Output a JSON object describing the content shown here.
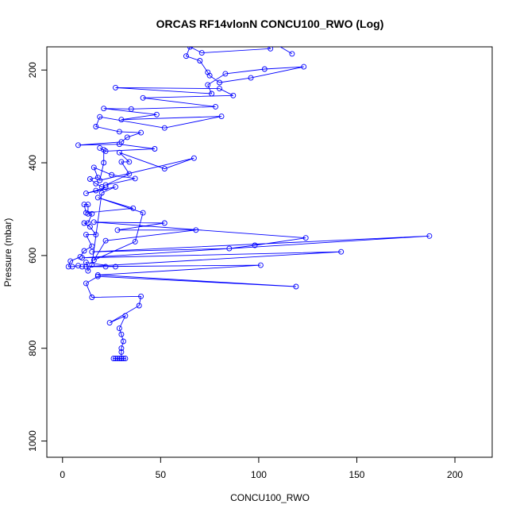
{
  "chart_data": {
    "type": "line",
    "title": "ORCAS RF14vlonN CONCU100_RWO (Log)",
    "xlabel": "CONCU100_RWO",
    "ylabel": "Pressure (mbar)",
    "xlim": [
      -8,
      219
    ],
    "ylim": [
      1035,
      150
    ],
    "y_inverted": true,
    "x_ticks": [
      0,
      50,
      100,
      150,
      200
    ],
    "y_ticks": [
      200,
      400,
      600,
      800,
      1000
    ],
    "grid": false,
    "legend": "none",
    "series_color": "#0000ff",
    "points": [
      [
        30,
        822
      ],
      [
        29,
        822
      ],
      [
        28,
        822
      ],
      [
        27,
        822
      ],
      [
        26,
        822
      ],
      [
        31,
        822
      ],
      [
        32,
        822
      ],
      [
        30,
        822
      ],
      [
        30,
        808
      ],
      [
        30,
        800
      ],
      [
        31,
        785
      ],
      [
        30,
        770
      ],
      [
        29,
        757
      ],
      [
        32,
        730
      ],
      [
        24,
        745
      ],
      [
        39,
        708
      ],
      [
        40,
        688
      ],
      [
        15,
        690
      ],
      [
        12,
        660
      ],
      [
        18,
        645
      ],
      [
        119,
        667
      ],
      [
        18,
        642
      ],
      [
        101,
        621
      ],
      [
        12,
        624
      ],
      [
        142,
        592
      ],
      [
        10,
        605
      ],
      [
        187,
        558
      ],
      [
        15,
        592
      ],
      [
        85,
        585
      ],
      [
        98,
        578
      ],
      [
        124,
        562
      ],
      [
        16,
        528
      ],
      [
        52,
        530
      ],
      [
        28,
        545
      ],
      [
        68,
        545
      ],
      [
        22,
        568
      ],
      [
        16,
        610
      ],
      [
        37,
        570
      ],
      [
        41,
        508
      ],
      [
        18,
        475
      ],
      [
        36,
        498
      ],
      [
        12,
        508
      ],
      [
        11,
        490
      ],
      [
        13,
        490
      ],
      [
        13,
        510
      ],
      [
        15,
        510
      ],
      [
        13,
        530
      ],
      [
        11,
        530
      ],
      [
        14,
        538
      ],
      [
        17,
        555
      ],
      [
        12,
        555
      ],
      [
        15,
        580
      ],
      [
        11,
        590
      ],
      [
        9,
        603
      ],
      [
        4,
        612
      ],
      [
        3,
        624
      ],
      [
        5,
        624
      ],
      [
        8,
        622
      ],
      [
        10,
        624
      ],
      [
        22,
        624
      ],
      [
        27,
        624
      ],
      [
        12,
        615
      ],
      [
        13,
        633
      ],
      [
        15,
        620
      ],
      [
        20,
        465
      ],
      [
        27,
        452
      ],
      [
        12,
        466
      ],
      [
        17,
        460
      ],
      [
        22,
        453
      ],
      [
        20,
        452
      ],
      [
        17,
        445
      ],
      [
        14,
        435
      ],
      [
        18,
        432
      ],
      [
        16,
        410
      ],
      [
        25,
        426
      ],
      [
        37,
        434
      ],
      [
        22,
        448
      ],
      [
        34,
        424
      ],
      [
        30,
        398
      ],
      [
        34,
        398
      ],
      [
        29,
        378
      ],
      [
        52,
        413
      ],
      [
        67,
        390
      ],
      [
        19,
        438
      ],
      [
        21,
        400
      ],
      [
        21,
        372
      ],
      [
        19,
        368
      ],
      [
        22,
        375
      ],
      [
        47,
        370
      ],
      [
        29,
        360
      ],
      [
        8,
        362
      ],
      [
        30,
        355
      ],
      [
        33,
        345
      ],
      [
        40,
        335
      ],
      [
        29,
        333
      ],
      [
        17,
        322
      ],
      [
        19,
        301
      ],
      [
        52,
        325
      ],
      [
        81,
        300
      ],
      [
        30,
        307
      ],
      [
        48,
        296
      ],
      [
        21,
        283
      ],
      [
        35,
        284
      ],
      [
        78,
        279
      ],
      [
        41,
        260
      ],
      [
        87,
        255
      ],
      [
        80,
        240
      ],
      [
        27,
        238
      ],
      [
        76,
        251
      ],
      [
        74,
        232
      ],
      [
        83,
        208
      ],
      [
        103,
        198
      ],
      [
        123,
        193
      ],
      [
        96,
        217
      ],
      [
        80,
        227
      ],
      [
        75,
        212
      ],
      [
        74,
        205
      ],
      [
        70,
        180
      ],
      [
        63,
        170
      ],
      [
        65,
        150
      ],
      [
        71,
        163
      ],
      [
        106,
        154
      ],
      [
        95,
        110
      ],
      [
        117,
        165
      ]
    ]
  }
}
